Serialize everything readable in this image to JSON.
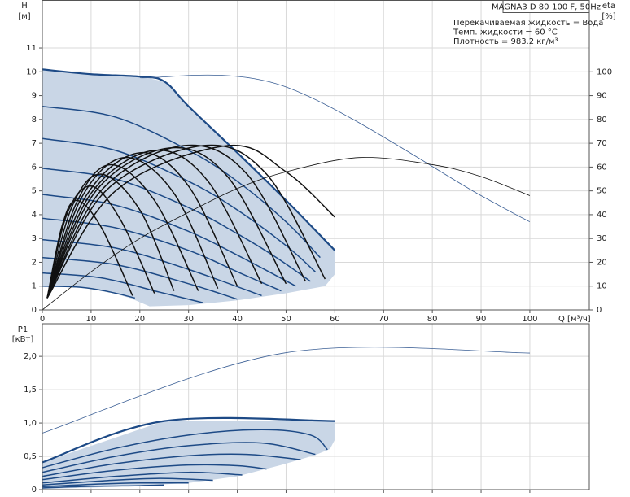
{
  "chart_data": [
    {
      "type": "line",
      "title": "MAGNA3 D 80-100 F, 50Hz",
      "annotations": [
        "Перекачиваемая жидкость = Вода",
        "Темп. жидкости = 60 °C",
        "Плотность = 983.2 кг/м³"
      ],
      "ylabel": "H",
      "ylabel_unit": "[м]",
      "y2label": "eta",
      "y2label_unit": "[%]",
      "xlabel": "Q [м³/ч]",
      "xlim": [
        0,
        112.2
      ],
      "ylim": [
        0,
        13
      ],
      "y2lim": [
        0,
        130
      ],
      "xticks": [
        0,
        10,
        20,
        30,
        40,
        50,
        60,
        70,
        80,
        90,
        100
      ],
      "yticks": [
        0,
        1,
        2,
        3,
        4,
        5,
        6,
        7,
        8,
        9,
        10,
        11
      ],
      "y2ticks": [
        0,
        10,
        20,
        30,
        40,
        50,
        60,
        70,
        80,
        90,
        100
      ],
      "show_xtick_labels": true,
      "grid": true,
      "areas": [
        {
          "color": "#c9d6e6",
          "x": [
            0,
            10,
            20,
            25,
            30,
            40,
            50,
            60,
            60,
            58,
            50,
            40,
            30,
            22,
            18,
            12,
            5,
            0
          ],
          "y": [
            10.1,
            9.9,
            9.8,
            9.6,
            8.55,
            6.6,
            4.6,
            2.5,
            1.5,
            1.0,
            0.7,
            0.4,
            0.2,
            0.15,
            0.5,
            0.85,
            1.0,
            1.0
          ]
        }
      ],
      "series": [
        {
          "color": "#1d4a86",
          "line_style": "normal",
          "x": [
            0,
            15,
            30,
            40,
            50,
            57
          ],
          "y": [
            8.55,
            8.1,
            6.7,
            5.4,
            3.7,
            2.2
          ]
        },
        {
          "color": "#1d4a86",
          "line_style": "normal",
          "x": [
            0,
            15,
            30,
            40,
            50,
            56
          ],
          "y": [
            7.2,
            6.7,
            5.4,
            4.2,
            2.7,
            1.6
          ]
        },
        {
          "color": "#1d4a86",
          "line_style": "normal",
          "x": [
            0,
            15,
            30,
            40,
            48,
            55
          ],
          "y": [
            5.95,
            5.5,
            4.3,
            3.2,
            2.2,
            1.2
          ]
        },
        {
          "color": "#1d4a86",
          "line_style": "normal",
          "x": [
            0,
            15,
            30,
            40,
            52
          ],
          "y": [
            4.85,
            4.4,
            3.3,
            2.3,
            1.0
          ]
        },
        {
          "color": "#1d4a86",
          "line_style": "normal",
          "x": [
            0,
            15,
            30,
            40,
            49
          ],
          "y": [
            3.85,
            3.45,
            2.5,
            1.6,
            0.8
          ]
        },
        {
          "color": "#1d4a86",
          "line_style": "normal",
          "x": [
            0,
            15,
            30,
            45
          ],
          "y": [
            2.95,
            2.6,
            1.7,
            0.6
          ]
        },
        {
          "color": "#1d4a86",
          "line_style": "normal",
          "x": [
            0,
            15,
            30,
            40
          ],
          "y": [
            2.2,
            1.9,
            1.1,
            0.45
          ]
        },
        {
          "color": "#1d4a86",
          "line_style": "normal",
          "x": [
            0,
            12,
            24,
            33
          ],
          "y": [
            1.55,
            1.35,
            0.75,
            0.3
          ]
        },
        {
          "color": "#1d4a86",
          "line_style": "normal",
          "x": [
            0,
            8,
            14,
            19
          ],
          "y": [
            1.0,
            0.95,
            0.75,
            0.5
          ]
        },
        {
          "color": "#1d4a86",
          "line_style": "bold",
          "x": [
            0,
            10,
            20,
            25,
            30,
            40,
            50,
            60
          ],
          "y": [
            10.1,
            9.9,
            9.8,
            9.6,
            8.55,
            6.6,
            4.6,
            2.5
          ]
        },
        {
          "color": "#3b5f95",
          "line_style": "thin",
          "x": [
            20,
            49.5,
            90,
            100
          ],
          "y": [
            9.75,
            9.4,
            4.8,
            3.7
          ]
        },
        {
          "color": "#111111",
          "line_style": "thin",
          "axis": "y2",
          "x": [
            0,
            10,
            20,
            30,
            40,
            50,
            65,
            80,
            90,
            100
          ],
          "y": [
            0,
            16,
            30,
            41,
            51,
            58,
            64,
            61,
            56,
            48
          ]
        },
        {
          "color": "#111111",
          "line_style": "normal",
          "axis": "y2",
          "x": [
            1,
            4,
            7,
            12,
            18.5
          ],
          "y": [
            5,
            35,
            46,
            35,
            6
          ]
        },
        {
          "color": "#111111",
          "line_style": "normal",
          "axis": "y2",
          "x": [
            1,
            5,
            10,
            16,
            23
          ],
          "y": [
            5,
            40,
            52,
            38,
            7
          ]
        },
        {
          "color": "#111111",
          "line_style": "normal",
          "axis": "y2",
          "x": [
            1,
            6,
            12,
            20,
            27
          ],
          "y": [
            5,
            43,
            57,
            42,
            8
          ]
        },
        {
          "color": "#111111",
          "line_style": "normal",
          "axis": "y2",
          "x": [
            1,
            7,
            14,
            23,
            32
          ],
          "y": [
            5,
            45,
            61,
            46,
            8
          ]
        },
        {
          "color": "#111111",
          "line_style": "normal",
          "axis": "y2",
          "x": [
            1,
            8,
            17,
            27,
            36
          ],
          "y": [
            5,
            47,
            64,
            49,
            9
          ]
        },
        {
          "color": "#111111",
          "line_style": "normal",
          "axis": "y2",
          "x": [
            1,
            9,
            20,
            30,
            40
          ],
          "y": [
            5,
            48,
            66,
            52,
            10
          ]
        },
        {
          "color": "#111111",
          "line_style": "normal",
          "axis": "y2",
          "x": [
            1,
            10,
            23,
            34,
            45
          ],
          "y": [
            5,
            49,
            67,
            54,
            11
          ]
        },
        {
          "color": "#111111",
          "line_style": "normal",
          "axis": "y2",
          "x": [
            1,
            11,
            26,
            38,
            50
          ],
          "y": [
            5,
            50,
            68,
            56,
            11
          ]
        },
        {
          "color": "#111111",
          "line_style": "normal",
          "axis": "y2",
          "x": [
            1,
            12,
            29,
            42,
            54
          ],
          "y": [
            5,
            50,
            69,
            57,
            12
          ]
        },
        {
          "color": "#111111",
          "line_style": "normal",
          "axis": "y2",
          "x": [
            1,
            13,
            33,
            46,
            58
          ],
          "y": [
            5,
            50,
            69,
            57,
            13
          ]
        },
        {
          "color": "#111111",
          "line_style": "normal",
          "axis": "y2",
          "x": [
            1,
            15,
            38,
            50,
            60
          ],
          "y": [
            5,
            50,
            69,
            58,
            39
          ]
        }
      ]
    },
    {
      "type": "line",
      "ylabel": "P1",
      "ylabel_unit": "[кВт]",
      "xlim": [
        0,
        112.2
      ],
      "ylim": [
        0,
        2.49
      ],
      "xticks": [
        0,
        10,
        20,
        30,
        40,
        50,
        60,
        70,
        80,
        90,
        100
      ],
      "yticks": [
        0,
        {
          "value": 0.5,
          "label": "0,5"
        },
        {
          "value": 1.0,
          "label": "1,0"
        },
        {
          "value": 1.5,
          "label": "1,5"
        },
        {
          "value": 2.0,
          "label": "2,0"
        }
      ],
      "show_xtick_labels": false,
      "grid": true,
      "areas": [
        {
          "color": "#c9d6e6",
          "x": [
            0,
            25,
            60,
            60,
            59,
            56,
            49,
            40,
            30,
            20,
            10,
            0
          ],
          "y": [
            0.41,
            1.03,
            1.03,
            0.75,
            0.61,
            0.52,
            0.37,
            0.2,
            0.1,
            0.06,
            0.03,
            0.01
          ]
        }
      ],
      "series": [
        {
          "color": "#1d4a86",
          "line_style": "normal",
          "x": [
            0,
            15,
            30,
            45,
            55,
            58.5
          ],
          "y": [
            0.33,
            0.62,
            0.82,
            0.9,
            0.82,
            0.6
          ]
        },
        {
          "color": "#1d4a86",
          "line_style": "normal",
          "x": [
            0,
            15,
            30,
            45,
            56
          ],
          "y": [
            0.26,
            0.5,
            0.66,
            0.7,
            0.53
          ]
        },
        {
          "color": "#1d4a86",
          "line_style": "normal",
          "x": [
            0,
            15,
            30,
            42,
            53
          ],
          "y": [
            0.2,
            0.39,
            0.51,
            0.53,
            0.45
          ]
        },
        {
          "color": "#1d4a86",
          "line_style": "normal",
          "x": [
            0,
            15,
            30,
            40,
            46
          ],
          "y": [
            0.15,
            0.29,
            0.37,
            0.36,
            0.31
          ]
        },
        {
          "color": "#1d4a86",
          "line_style": "normal",
          "x": [
            0,
            15,
            30,
            41
          ],
          "y": [
            0.1,
            0.2,
            0.26,
            0.22
          ]
        },
        {
          "color": "#1d4a86",
          "line_style": "normal",
          "x": [
            0,
            12,
            24,
            35
          ],
          "y": [
            0.07,
            0.13,
            0.17,
            0.14
          ]
        },
        {
          "color": "#1d4a86",
          "line_style": "normal",
          "x": [
            0,
            10,
            20,
            30
          ],
          "y": [
            0.045,
            0.08,
            0.1,
            0.1
          ]
        },
        {
          "color": "#1d4a86",
          "line_style": "normal",
          "x": [
            0,
            10,
            20,
            25
          ],
          "y": [
            0.025,
            0.05,
            0.06,
            0.07
          ]
        },
        {
          "color": "#1d4a86",
          "line_style": "bold",
          "x": [
            0,
            25,
            60
          ],
          "y": [
            0.41,
            1.03,
            1.03
          ]
        },
        {
          "color": "#3b5f95",
          "line_style": "thin",
          "x": [
            0,
            49.5,
            100
          ],
          "y": [
            0.85,
            2.05,
            2.05
          ]
        }
      ]
    }
  ]
}
